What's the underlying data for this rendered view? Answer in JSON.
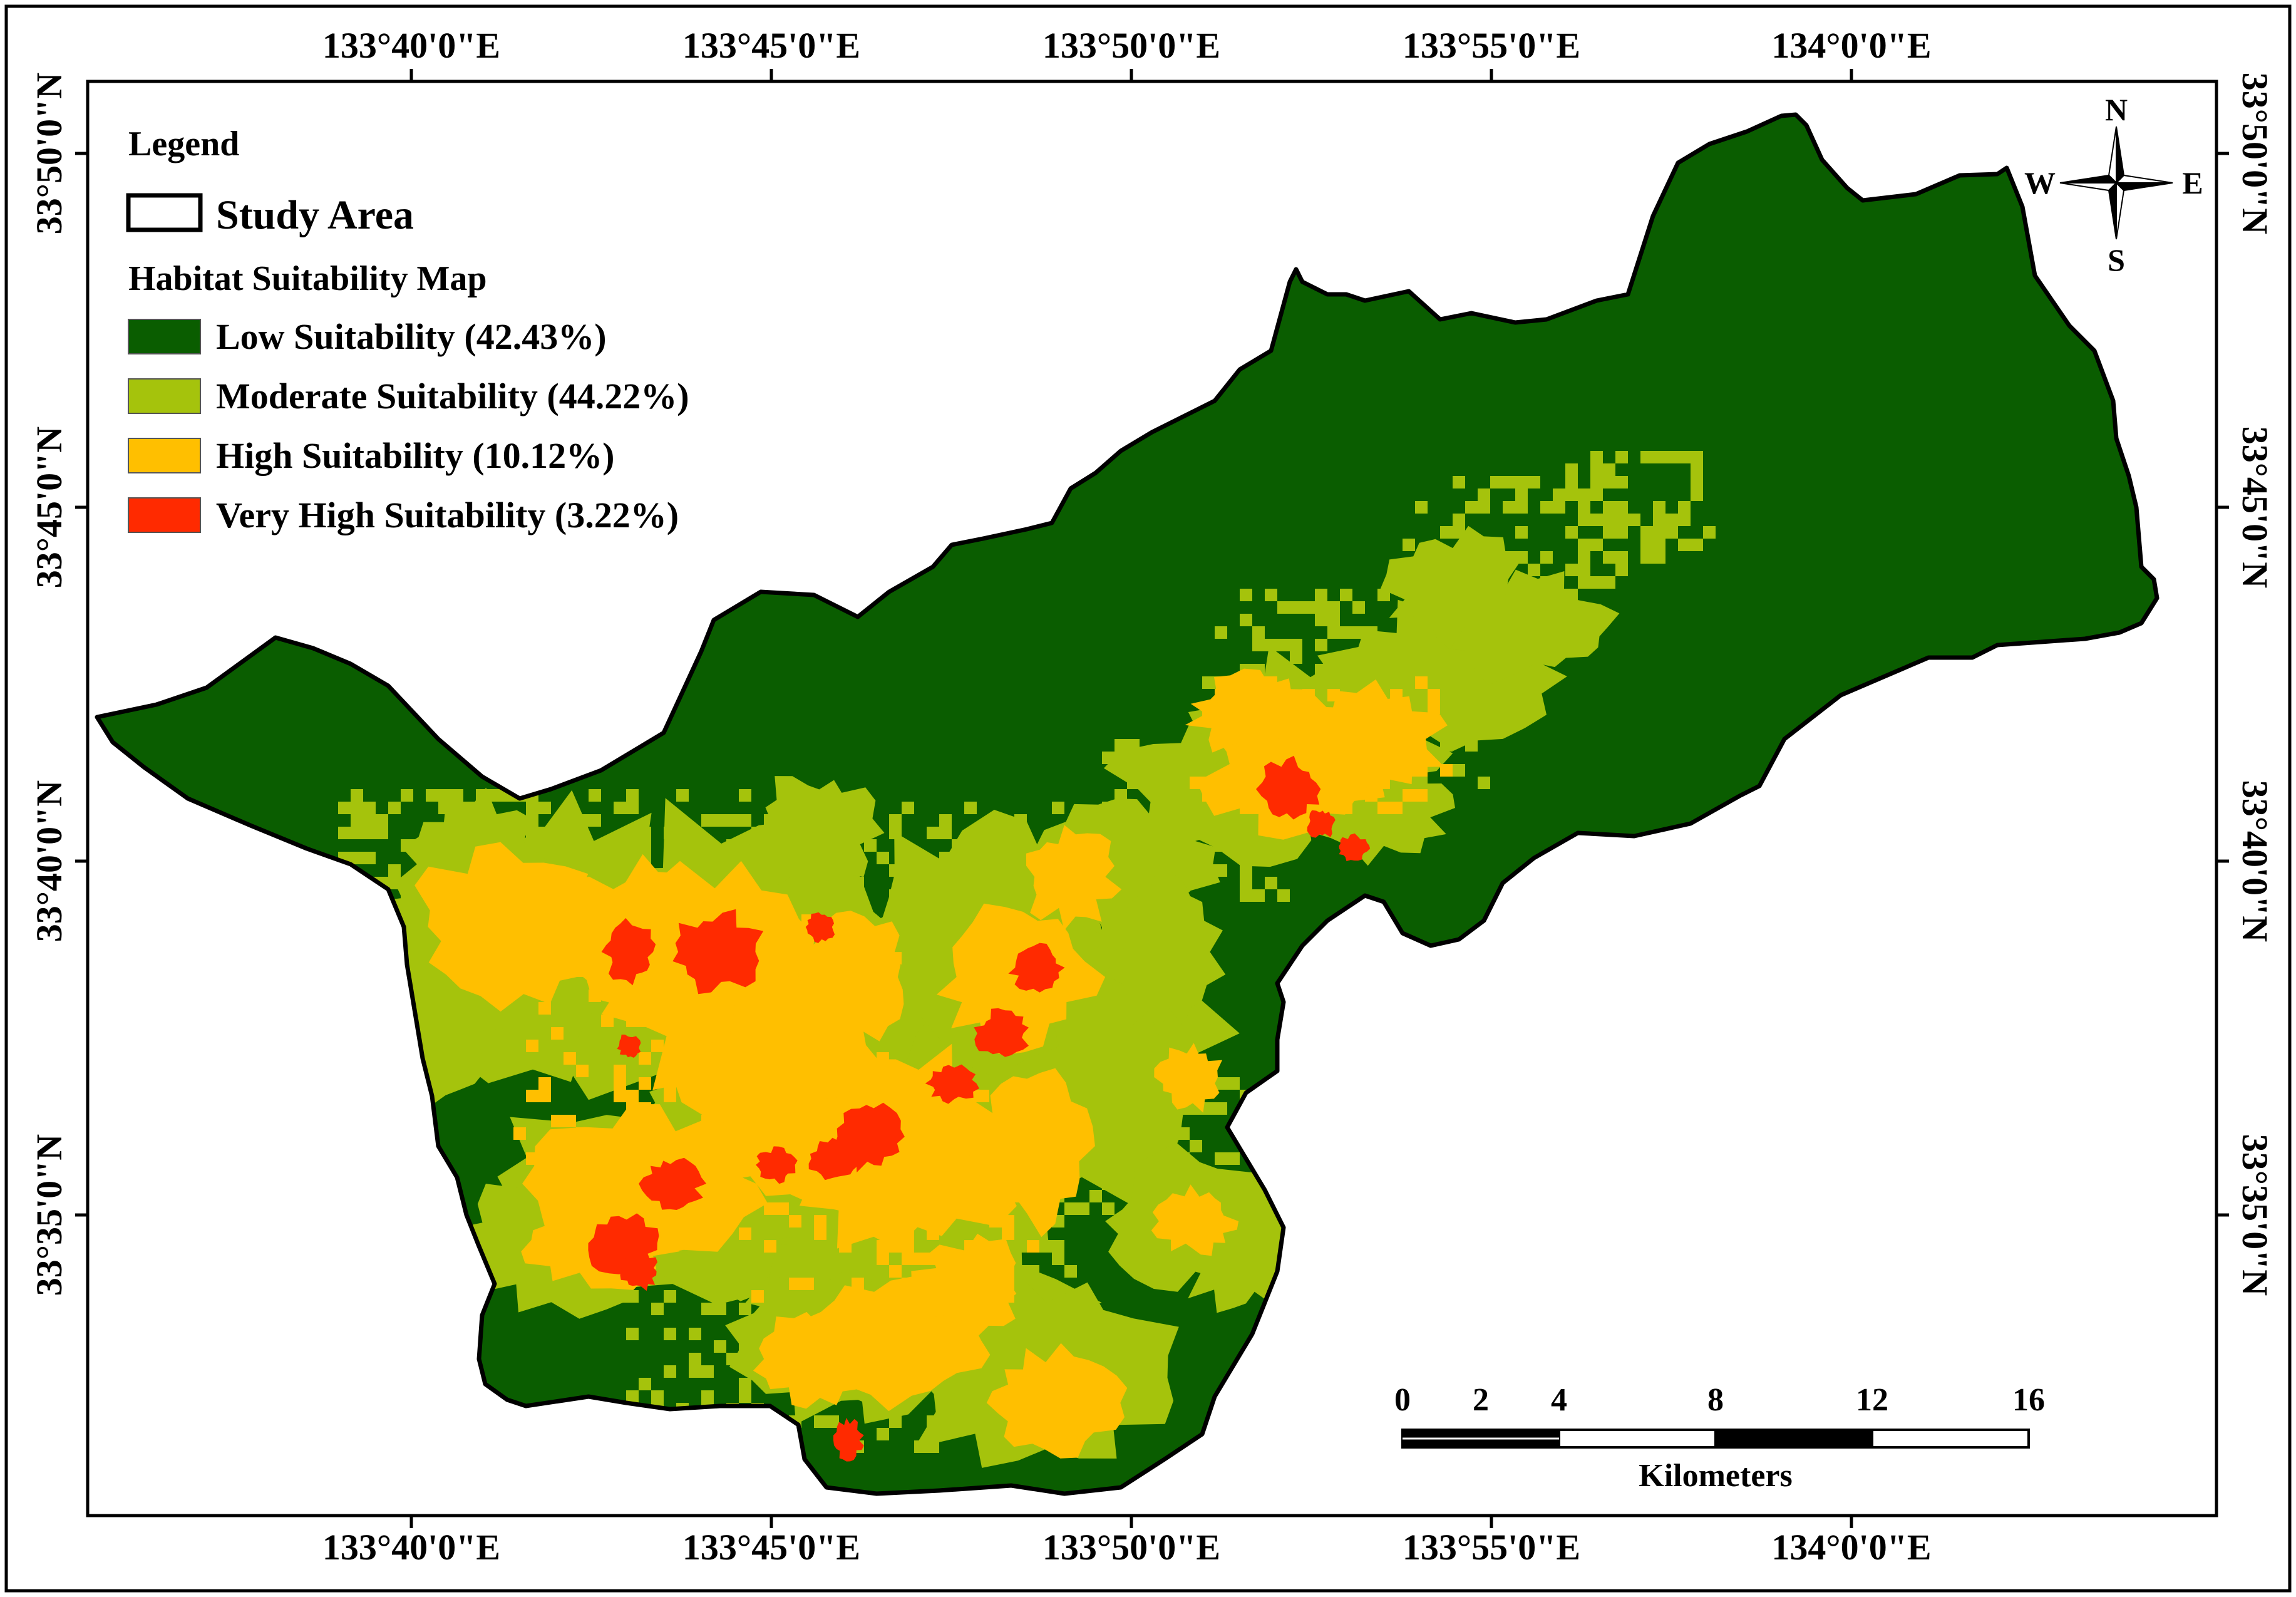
{
  "colors": {
    "low": "#0a5d00",
    "moderate": "#a5c30c",
    "high": "#ffbf00",
    "very_high": "#ff2a00",
    "outline": "#000000",
    "frame": "#000000"
  },
  "legend": {
    "title": "Legend",
    "study_area": "Study Area",
    "map_title": "Habitat Suitability Map",
    "classes": [
      {
        "key": "low",
        "label": "Low Suitability (42.43%)"
      },
      {
        "key": "moderate",
        "label": "Moderate Suitability (44.22%)"
      },
      {
        "key": "high",
        "label": "High Suitability (10.12%)"
      },
      {
        "key": "very_high",
        "label": "Very High Suitability (3.22%)"
      }
    ]
  },
  "graticule": {
    "longitudes": [
      "133°40'0\"E",
      "133°45'0\"E",
      "133°50'0\"E",
      "133°55'0\"E",
      "134°0'0\"E"
    ],
    "latitudes": [
      "33°50'0\"N",
      "33°45'0\"N",
      "33°40'0\"N",
      "33°35'0\"N"
    ]
  },
  "compass": {
    "north": "N",
    "south": "S",
    "east": "E",
    "west": "W"
  },
  "scale_bar": {
    "ticks": [
      "0",
      "2",
      "4",
      "8",
      "12",
      "16"
    ],
    "unit": "Kilometers"
  }
}
